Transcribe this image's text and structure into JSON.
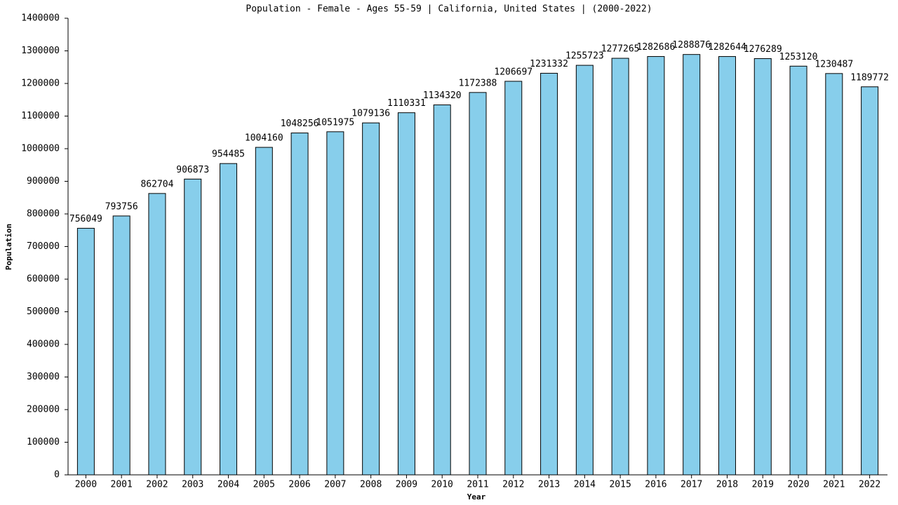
{
  "chart_data": {
    "type": "bar",
    "title": "Population - Female - Ages 55-59 | California, United States |  (2000-2022)",
    "x_label": "Year",
    "y_label": "Population",
    "categories": [
      "2000",
      "2001",
      "2002",
      "2003",
      "2004",
      "2005",
      "2006",
      "2007",
      "2008",
      "2009",
      "2010",
      "2011",
      "2012",
      "2013",
      "2014",
      "2015",
      "2016",
      "2017",
      "2018",
      "2019",
      "2020",
      "2021",
      "2022"
    ],
    "values": [
      756049,
      793756,
      862704,
      906873,
      954485,
      1004160,
      1048256,
      1051975,
      1079136,
      1110331,
      1134320,
      1172388,
      1206697,
      1231332,
      1255723,
      1277265,
      1282686,
      1288876,
      1282644,
      1276289,
      1253120,
      1230487,
      1189772
    ],
    "color": "#87ceeb",
    "ylim": [
      0,
      1400000
    ],
    "yticks": [
      0,
      100000,
      200000,
      300000,
      400000,
      500000,
      600000,
      700000,
      800000,
      900000,
      1000000,
      1100000,
      1200000,
      1300000,
      1400000
    ],
    "grid": false
  }
}
